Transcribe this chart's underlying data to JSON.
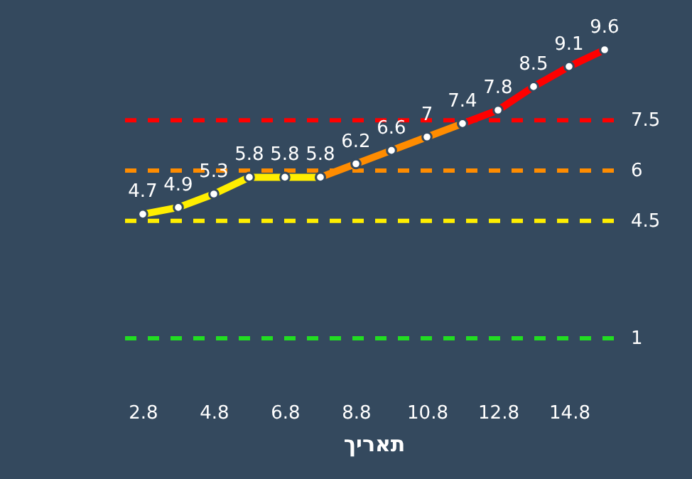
{
  "chart_data": {
    "type": "line",
    "xlabel": "תאריך",
    "categories": [
      "2.8",
      null,
      "4.8",
      null,
      "6.8",
      null,
      "8.8",
      null,
      "10.8",
      null,
      "12.8",
      null,
      "14.8",
      null
    ],
    "series": [
      {
        "color": "#ffee00",
        "values": [
          4.7,
          4.9,
          5.3,
          5.8,
          5.8,
          5.8,
          null,
          null,
          null,
          null,
          null,
          null,
          null,
          null
        ],
        "value_labels": [
          "4.7",
          "4.9",
          "5.3",
          "5.8",
          "5.8",
          "5.8",
          null,
          null,
          null,
          null,
          null,
          null,
          null,
          null
        ]
      },
      {
        "color": "#ff8c00",
        "values": [
          null,
          null,
          null,
          null,
          null,
          5.8,
          6.2,
          6.6,
          7,
          7.4,
          null,
          null,
          null,
          null
        ],
        "value_labels": [
          null,
          null,
          null,
          null,
          null,
          null,
          "6.2",
          "6.6",
          "7",
          "7.4",
          null,
          null,
          null,
          null
        ]
      },
      {
        "color": "#ff0000",
        "values": [
          null,
          null,
          null,
          null,
          null,
          null,
          null,
          null,
          null,
          7.4,
          7.8,
          8.5,
          9.1,
          9.6
        ],
        "value_labels": [
          null,
          null,
          null,
          null,
          null,
          null,
          null,
          null,
          null,
          null,
          "7.8",
          "8.5",
          "9.1",
          "9.6"
        ]
      }
    ],
    "tick_labels": "x",
    "grid": false,
    "marker": "circle",
    "line_style": "solid",
    "ref_lines": [
      {
        "axis": "y",
        "value": 7.5,
        "label": "7.5",
        "color": "#ff0000",
        "line_style": "dashed"
      },
      {
        "axis": "y",
        "value": 6,
        "label": "6",
        "color": "#ff8c00",
        "line_style": "dashed"
      },
      {
        "axis": "y",
        "value": 4.5,
        "label": "4.5",
        "color": "#ffee00",
        "line_style": "dashed"
      },
      {
        "axis": "y",
        "value": 1,
        "label": "1",
        "color": "#22dd22",
        "line_style": "dashed"
      }
    ]
  }
}
